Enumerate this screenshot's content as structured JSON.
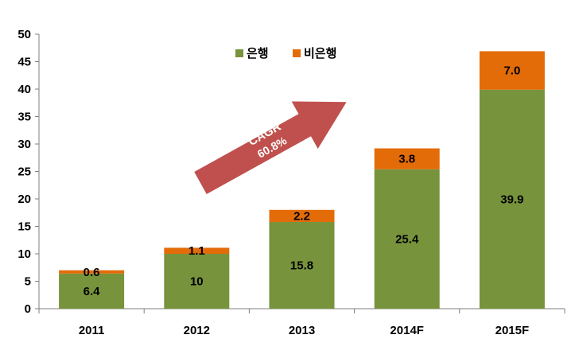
{
  "chart_data": {
    "type": "bar",
    "stacked": true,
    "categories": [
      "2011",
      "2012",
      "2013",
      "2014F",
      "2015F"
    ],
    "series": [
      {
        "name": "은행",
        "values": [
          6.4,
          10,
          15.8,
          25.4,
          39.9
        ],
        "labels": [
          "6.4",
          "10",
          "15.8",
          "25.4",
          "39.9"
        ],
        "color": "#77933c"
      },
      {
        "name": "비은행",
        "values": [
          0.6,
          1.1,
          2.2,
          3.8,
          7.0
        ],
        "labels": [
          "0.6",
          "1.1",
          "2.2",
          "3.8",
          "7.0"
        ],
        "color": "#e36c09"
      }
    ],
    "ylim": [
      0,
      50
    ],
    "yticks": [
      "0",
      "5",
      "10",
      "15",
      "20",
      "25",
      "30",
      "35",
      "40",
      "45",
      "50"
    ],
    "grid": false,
    "legend": "top-center",
    "annotation": {
      "line1": "CAGR",
      "line2": "60.8%",
      "color": "#c0504d"
    }
  }
}
